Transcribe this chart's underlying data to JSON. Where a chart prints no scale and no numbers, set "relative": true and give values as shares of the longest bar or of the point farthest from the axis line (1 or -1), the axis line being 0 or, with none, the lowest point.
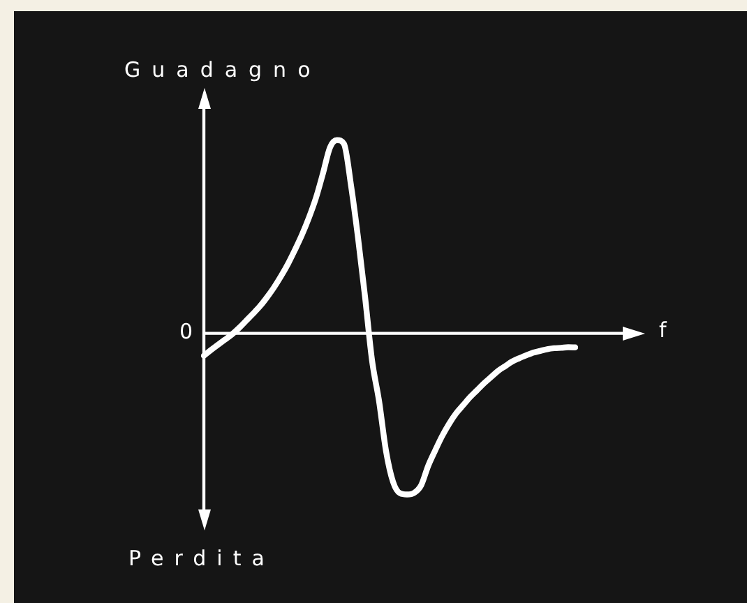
{
  "chart_data": {
    "type": "line",
    "xlabel": "f",
    "ylabel": "Guadagno",
    "annotations": [
      "0",
      "Perdita"
    ],
    "relative": true,
    "legend": false,
    "marker": "none",
    "line_style": "solid",
    "categories": [
      null,
      null,
      null,
      null,
      null,
      null,
      null,
      null,
      null,
      null,
      null,
      null,
      null,
      null,
      null,
      null,
      null,
      null,
      null,
      null,
      null,
      null,
      null,
      null,
      null,
      null,
      null,
      null,
      null,
      null,
      null,
      null,
      null,
      null,
      null,
      null,
      null,
      null,
      null,
      null,
      null,
      null,
      null,
      null,
      null,
      null,
      null,
      null,
      null,
      null,
      null,
      null,
      null,
      null
    ],
    "series": [
      {
        "color": "#ffffff",
        "values": [
          -0.116,
          -0.087,
          -0.06,
          -0.033,
          -0.006,
          0.027,
          0.064,
          0.101,
          0.14,
          0.186,
          0.237,
          0.295,
          0.359,
          0.432,
          0.51,
          0.599,
          0.701,
          0.828,
          0.962,
          1.0,
          0.98,
          0.766,
          0.495,
          0.19,
          -0.14,
          -0.35,
          -0.61,
          -0.769,
          -0.828,
          -0.834,
          -0.826,
          -0.787,
          -0.687,
          -0.607,
          -0.532,
          -0.468,
          -0.414,
          -0.372,
          -0.33,
          -0.294,
          -0.258,
          -0.226,
          -0.194,
          -0.17,
          -0.146,
          -0.129,
          -0.114,
          -0.1,
          -0.091,
          -0.082,
          -0.077,
          -0.075,
          -0.072,
          -0.073
        ]
      }
    ]
  }
}
